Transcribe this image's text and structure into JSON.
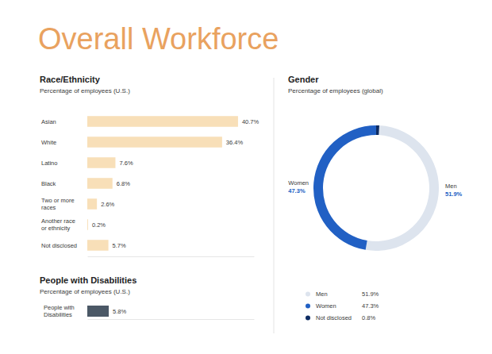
{
  "title": "Overall Workforce",
  "chart_data": [
    {
      "type": "bar",
      "orientation": "horizontal",
      "title": "Race/Ethnicity",
      "subtitle": "Percentage of employees (U.S.)",
      "categories": [
        "Asian",
        "White",
        "Latino",
        "Black",
        "Two or more races",
        "Another race or ethnicity",
        "Not disclosed"
      ],
      "values": [
        40.7,
        36.4,
        7.6,
        6.8,
        2.6,
        0.2,
        5.7
      ],
      "value_labels": [
        "40.7%",
        "36.4%",
        "7.6%",
        "6.8%",
        "2.6%",
        "0.2%",
        "5.7%"
      ],
      "data_labels": true,
      "color": "#f8dfb8",
      "xlim": [
        0,
        45
      ],
      "xticks": [],
      "tick_labels": "y"
    },
    {
      "type": "bar",
      "orientation": "horizontal",
      "title": "People with Disabilities",
      "subtitle": "Percentage of employees (U.S.)",
      "categories": [
        "People with Disabilities"
      ],
      "values": [
        5.8
      ],
      "value_labels": [
        "5.8%"
      ],
      "data_labels": true,
      "color": "#4b5866",
      "xlim": [
        0,
        45
      ],
      "xticks": [],
      "tick_labels": "y"
    },
    {
      "type": "pie",
      "title": "Gender",
      "subtitle": "Percentage of employees (global)",
      "categories": [
        "Men",
        "Women",
        "Not disclosed"
      ],
      "values": [
        51.9,
        47.3,
        0.8
      ],
      "value_labels": [
        "51.9%",
        "47.3%",
        "0.8%"
      ],
      "colors": [
        "#dde4ee",
        "#2160c4",
        "#0e2c63"
      ],
      "data_labels": true,
      "legend": "bottom"
    }
  ]
}
